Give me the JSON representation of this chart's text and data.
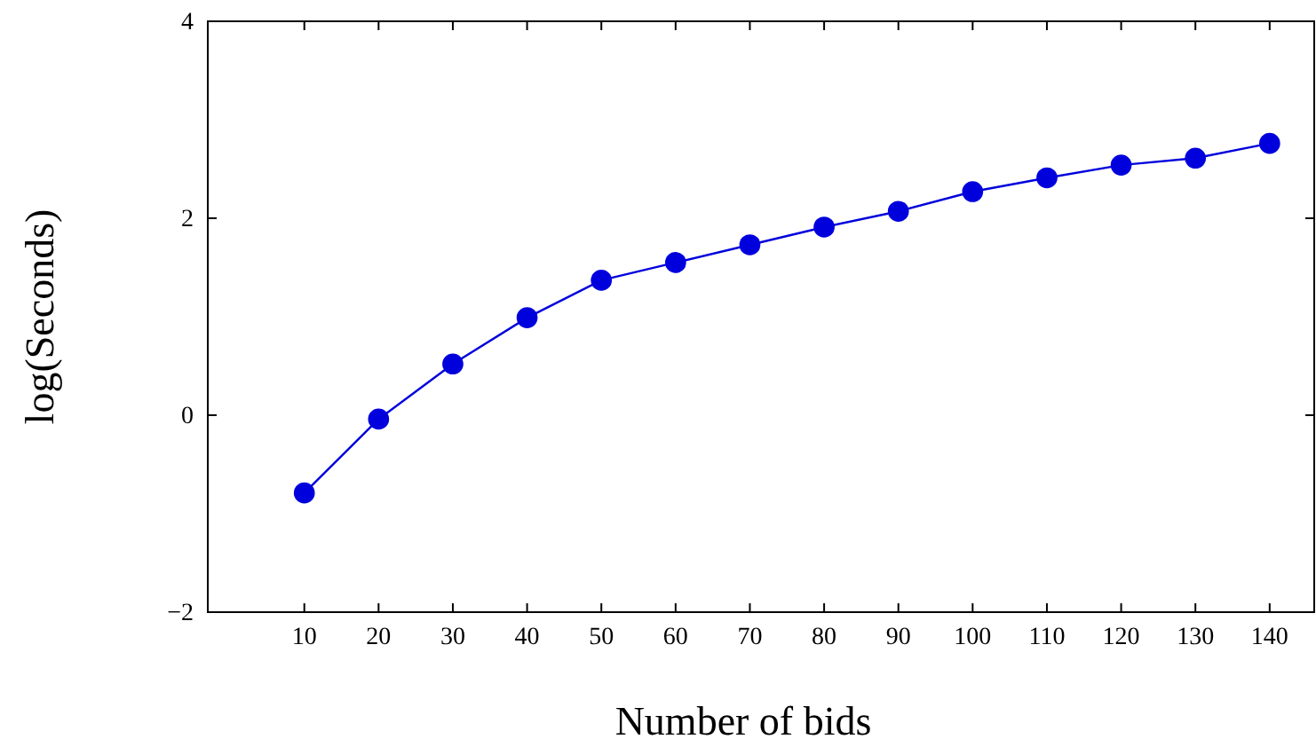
{
  "chart_data": {
    "type": "line",
    "xlabel": "Number of bids",
    "ylabel": "log(Seconds)",
    "x": [
      10,
      20,
      30,
      40,
      50,
      60,
      70,
      80,
      90,
      100,
      110,
      120,
      130,
      140
    ],
    "series": [
      {
        "color": "#0000dd",
        "values": [
          -0.79,
          -0.04,
          0.52,
          0.99,
          1.37,
          1.55,
          1.73,
          1.91,
          2.07,
          2.27,
          2.41,
          2.54,
          2.61,
          2.76
        ]
      }
    ],
    "xlim": [
      -3,
      146
    ],
    "xticks": [
      10,
      20,
      30,
      40,
      50,
      60,
      70,
      80,
      90,
      100,
      110,
      120,
      130,
      140
    ],
    "ylim": [
      -2,
      4
    ],
    "yticks": [
      {
        "value": -2,
        "label": "−2"
      },
      0,
      2,
      4
    ],
    "marker": "circle",
    "line_style": "solid",
    "grid": false
  }
}
